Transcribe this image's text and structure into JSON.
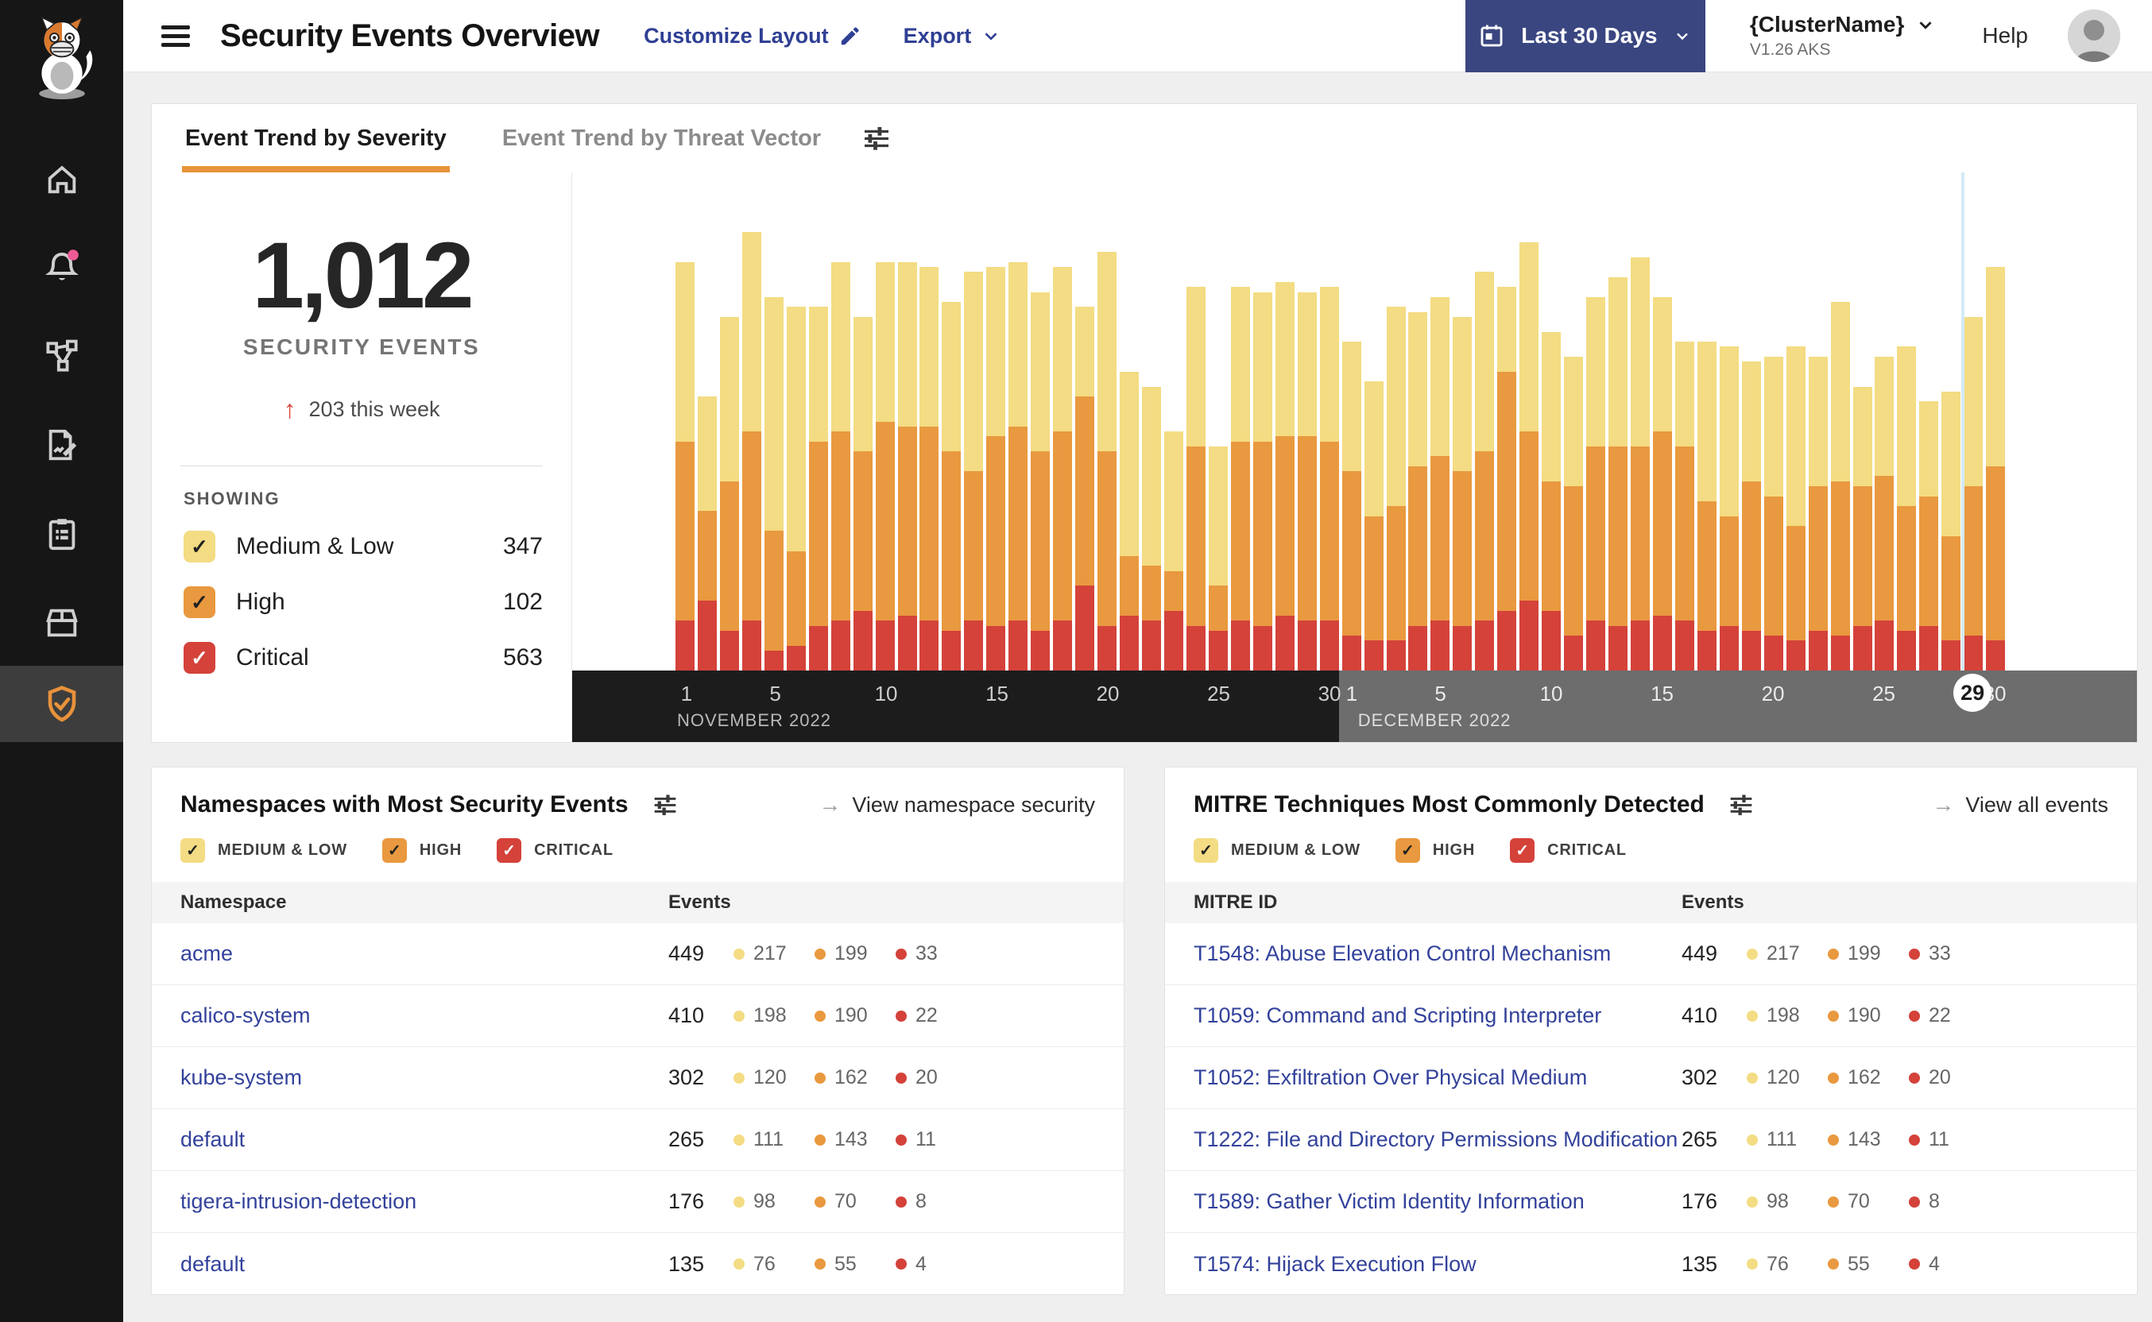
{
  "header": {
    "title": "Security Events Overview",
    "customize_layout_label": "Customize Layout",
    "export_label": "Export",
    "date_range_label": "Last 30 Days",
    "cluster_name": "{ClusterName}",
    "cluster_version": "V1.26 AKS",
    "help_label": "Help"
  },
  "sidebar": {
    "items": [
      "home",
      "alerts",
      "service-graph",
      "policies",
      "compliance-reports",
      "workloads",
      "threat-defense"
    ],
    "active_item": "threat-defense",
    "alert_badge_color": "#ee5a96"
  },
  "colors": {
    "medium_low": "#F3DC83",
    "high": "#E9993F",
    "critical": "#D4423A",
    "accent_orange": "#E8953C",
    "navy_button": "#3A4680",
    "link_navy": "#33429b",
    "selection_line": "#d4eaf6"
  },
  "trend_card": {
    "tabs": [
      {
        "label": "Event Trend by Severity",
        "active": true
      },
      {
        "label": "Event Trend by Threat Vector",
        "active": false
      }
    ],
    "total": "1,012",
    "total_label": "SECURITY EVENTS",
    "delta_arrow": "↑",
    "delta_label": "203 this week",
    "showing_label": "SHOWING",
    "filters": [
      {
        "label": "Medium & Low",
        "count": "347",
        "color": "#F3DC83",
        "check": "#222222"
      },
      {
        "label": "High",
        "count": "102",
        "color": "#E9993F",
        "check": "#222222"
      },
      {
        "label": "Critical",
        "count": "563",
        "color": "#D4423A",
        "check": "#ffffff"
      }
    ]
  },
  "chart_data": {
    "type": "bar",
    "stacked": true,
    "note": "no y-axis shown; values are approximate daily event counts (relative height units)",
    "months": [
      {
        "label": "NOVEMBER 2022",
        "days": 30,
        "ticks": [
          1,
          5,
          10,
          15,
          20,
          25,
          30
        ]
      },
      {
        "label": "DECEMBER 2022",
        "days": 30,
        "ticks": [
          1,
          5,
          10,
          15,
          20,
          25,
          30
        ]
      }
    ],
    "selected": {
      "month_index": 1,
      "day": 29,
      "label": "29"
    },
    "series": [
      {
        "name": "Critical",
        "color": "#D4423A",
        "values": [
          10,
          14,
          8,
          10,
          4,
          5,
          9,
          10,
          12,
          10,
          11,
          10,
          8,
          10,
          9,
          10,
          8,
          10,
          17,
          9,
          11,
          10,
          12,
          9,
          8,
          10,
          9,
          11,
          10,
          10,
          7,
          6,
          6,
          9,
          10,
          9,
          10,
          12,
          14,
          12,
          7,
          10,
          9,
          10,
          11,
          10,
          8,
          9,
          8,
          7,
          6,
          8,
          7,
          9,
          10,
          8,
          9,
          6,
          7,
          6
        ]
      },
      {
        "name": "High",
        "color": "#E9993F",
        "values": [
          36,
          18,
          30,
          38,
          24,
          19,
          37,
          38,
          32,
          40,
          38,
          39,
          36,
          30,
          38,
          39,
          36,
          38,
          38,
          35,
          12,
          11,
          8,
          36,
          9,
          36,
          37,
          36,
          37,
          36,
          33,
          25,
          27,
          32,
          33,
          31,
          34,
          48,
          34,
          26,
          30,
          35,
          36,
          35,
          37,
          35,
          26,
          22,
          30,
          28,
          23,
          29,
          31,
          28,
          29,
          25,
          26,
          21,
          30,
          35
        ]
      },
      {
        "name": "Medium & Low",
        "color": "#F3DC83",
        "values": [
          36,
          23,
          33,
          40,
          47,
          49,
          27,
          34,
          27,
          32,
          33,
          32,
          30,
          40,
          34,
          33,
          32,
          33,
          18,
          40,
          37,
          36,
          28,
          32,
          28,
          31,
          30,
          31,
          29,
          31,
          26,
          27,
          40,
          31,
          32,
          31,
          36,
          17,
          38,
          30,
          26,
          30,
          34,
          38,
          27,
          21,
          32,
          34,
          24,
          28,
          36,
          26,
          36,
          20,
          24,
          32,
          19,
          29,
          34,
          40
        ]
      }
    ]
  },
  "severity_filters": [
    {
      "label": "MEDIUM & LOW",
      "color": "#F3DC83",
      "check": "#222222"
    },
    {
      "label": "HIGH",
      "color": "#E9993F",
      "check": "#222222"
    },
    {
      "label": "CRITICAL",
      "color": "#D4423A",
      "check": "#ffffff"
    }
  ],
  "namespaces_card": {
    "title": "Namespaces with Most Security Events",
    "link_arrow": "→",
    "link_label": "View namespace security",
    "columns": [
      "Namespace",
      "Events"
    ],
    "rows": [
      {
        "name": "acme",
        "total": "449",
        "medium_low": "217",
        "high": "199",
        "critical": "33"
      },
      {
        "name": "calico-system",
        "total": "410",
        "medium_low": "198",
        "high": "190",
        "critical": "22"
      },
      {
        "name": "kube-system",
        "total": "302",
        "medium_low": "120",
        "high": "162",
        "critical": "20"
      },
      {
        "name": "default",
        "total": "265",
        "medium_low": "111",
        "high": "143",
        "critical": "11"
      },
      {
        "name": "tigera-intrusion-detection",
        "total": "176",
        "medium_low": "98",
        "high": "70",
        "critical": "8"
      },
      {
        "name": "default",
        "total": "135",
        "medium_low": "76",
        "high": "55",
        "critical": "4"
      }
    ]
  },
  "mitre_card": {
    "title": "MITRE Techniques Most Commonly Detected",
    "link_arrow": "→",
    "link_label": "View all events",
    "columns": [
      "MITRE ID",
      "Events"
    ],
    "rows": [
      {
        "name": "T1548: Abuse Elevation Control Mechanism",
        "total": "449",
        "medium_low": "217",
        "high": "199",
        "critical": "33"
      },
      {
        "name": "T1059: Command and Scripting Interpreter",
        "total": "410",
        "medium_low": "198",
        "high": "190",
        "critical": "22"
      },
      {
        "name": "T1052: Exfiltration Over Physical Medium",
        "total": "302",
        "medium_low": "120",
        "high": "162",
        "critical": "20"
      },
      {
        "name": "T1222: File and Directory Permissions Modification",
        "total": "265",
        "medium_low": "111",
        "high": "143",
        "critical": "11"
      },
      {
        "name": "T1589: Gather Victim Identity Information",
        "total": "176",
        "medium_low": "98",
        "high": "70",
        "critical": "8"
      },
      {
        "name": "T1574: Hijack Execution Flow",
        "total": "135",
        "medium_low": "76",
        "high": "55",
        "critical": "4"
      }
    ]
  }
}
